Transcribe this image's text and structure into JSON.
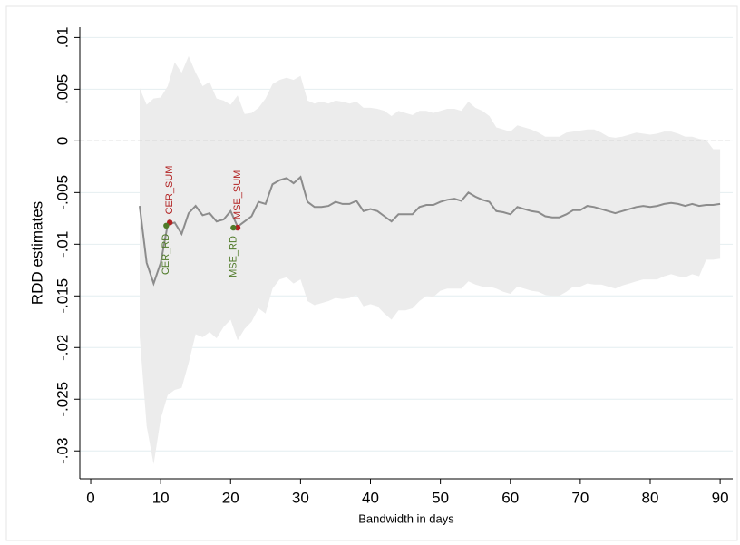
{
  "chart_data": {
    "type": "line",
    "ylabel": "RDD estimates",
    "xlabel": "Bandwidth in days",
    "color": "#8c8c8c",
    "band_color": "#ececec",
    "grid": true,
    "reference_line": 0,
    "xlim": [
      -1.56,
      91.8
    ],
    "ylim": [
      -0.0327,
      0.011
    ],
    "xticks": [
      0,
      10,
      20,
      30,
      40,
      50,
      60,
      70,
      80,
      90
    ],
    "yticks": [
      {
        "value": 0.01,
        "label": ".01"
      },
      {
        "value": 0.005,
        "label": ".005"
      },
      0,
      {
        "value": -0.005,
        "label": "-.005"
      },
      {
        "value": -0.01,
        "label": "-.01"
      },
      {
        "value": -0.015,
        "label": "-.015"
      },
      {
        "value": -0.02,
        "label": "-.02"
      },
      {
        "value": -0.025,
        "label": "-.025"
      },
      {
        "value": -0.03,
        "label": "-.03"
      }
    ],
    "x": [
      7,
      8,
      9,
      10,
      11,
      12,
      13,
      14,
      15,
      16,
      17,
      18,
      19,
      20,
      21,
      22,
      23,
      24,
      25,
      26,
      27,
      28,
      29,
      30,
      31,
      32,
      33,
      34,
      35,
      36,
      37,
      38,
      39,
      40,
      41,
      42,
      43,
      44,
      45,
      46,
      47,
      48,
      49,
      50,
      51,
      52,
      53,
      54,
      55,
      56,
      57,
      58,
      59,
      60,
      61,
      62,
      63,
      64,
      65,
      66,
      67,
      68,
      69,
      70,
      71,
      72,
      73,
      74,
      75,
      76,
      77,
      78,
      79,
      80,
      81,
      82,
      83,
      84,
      85,
      86,
      87,
      88,
      89,
      90
    ],
    "values": [
      -0.0063,
      -0.0118,
      -0.0138,
      -0.0118,
      -0.0081,
      -0.0079,
      -0.009,
      -0.007,
      -0.0063,
      -0.0072,
      -0.007,
      -0.0078,
      -0.0076,
      -0.0068,
      -0.0083,
      -0.0078,
      -0.0073,
      -0.0059,
      -0.0061,
      -0.0042,
      -0.0038,
      -0.0036,
      -0.0041,
      -0.0035,
      -0.0059,
      -0.0064,
      -0.0064,
      -0.0063,
      -0.0059,
      -0.0061,
      -0.0061,
      -0.0058,
      -0.0068,
      -0.0066,
      -0.0068,
      -0.0073,
      -0.0078,
      -0.0071,
      -0.0071,
      -0.0071,
      -0.0064,
      -0.0062,
      -0.0062,
      -0.0059,
      -0.0057,
      -0.0056,
      -0.0058,
      -0.005,
      -0.0054,
      -0.0057,
      -0.0059,
      -0.0068,
      -0.0069,
      -0.0071,
      -0.0064,
      -0.0066,
      -0.0068,
      -0.0069,
      -0.0073,
      -0.0074,
      -0.0074,
      -0.0071,
      -0.0067,
      -0.0067,
      -0.0063,
      -0.0064,
      -0.0066,
      -0.0068,
      -0.007,
      -0.0068,
      -0.0066,
      -0.0064,
      -0.0063,
      -0.0064,
      -0.0063,
      -0.0061,
      -0.006,
      -0.0061,
      -0.0063,
      -0.0061,
      -0.0063,
      -0.0062,
      -0.0062,
      -0.0061
    ],
    "ci_upper": [
      0.0051,
      0.0035,
      0.0041,
      0.0042,
      0.0053,
      0.0076,
      0.0066,
      0.0082,
      0.0066,
      0.0053,
      0.0057,
      0.0041,
      0.0039,
      0.0035,
      0.0044,
      0.0026,
      0.0027,
      0.0032,
      0.0041,
      0.0055,
      0.0059,
      0.0061,
      0.0059,
      0.0063,
      0.0039,
      0.0036,
      0.0038,
      0.0036,
      0.0039,
      0.0038,
      0.0036,
      0.0038,
      0.0032,
      0.0032,
      0.0031,
      0.0029,
      0.0024,
      0.0029,
      0.0027,
      0.0025,
      0.0029,
      0.0029,
      0.0027,
      0.0029,
      0.0031,
      0.0031,
      0.0029,
      0.0038,
      0.0032,
      0.0029,
      0.0024,
      0.0013,
      0.0011,
      0.0009,
      0.0015,
      0.0013,
      0.0011,
      0.0008,
      0.0004,
      0.0004,
      0.0004,
      0.0008,
      0.0009,
      0.001,
      0.0011,
      0.0011,
      0.0008,
      0.0004,
      0.0003,
      0.0004,
      0.0006,
      0.0008,
      0.0007,
      0.0006,
      0.0007,
      0.0009,
      0.0009,
      0.0007,
      0.0004,
      0.0004,
      0.0002,
      0.0001,
      -0.0008,
      -0.0008
    ],
    "ci_lower": [
      -0.0189,
      -0.0276,
      -0.0313,
      -0.0269,
      -0.0246,
      -0.0241,
      -0.0239,
      -0.0215,
      -0.0187,
      -0.019,
      -0.0185,
      -0.0191,
      -0.018,
      -0.0173,
      -0.0193,
      -0.0182,
      -0.0175,
      -0.0162,
      -0.0167,
      -0.0143,
      -0.0134,
      -0.0132,
      -0.0138,
      -0.0134,
      -0.0155,
      -0.0159,
      -0.0157,
      -0.0155,
      -0.0152,
      -0.0153,
      -0.0152,
      -0.0149,
      -0.016,
      -0.0158,
      -0.016,
      -0.0167,
      -0.0173,
      -0.0164,
      -0.0164,
      -0.0162,
      -0.0155,
      -0.015,
      -0.0151,
      -0.0145,
      -0.0143,
      -0.0143,
      -0.0143,
      -0.0136,
      -0.0139,
      -0.0141,
      -0.0141,
      -0.0143,
      -0.0146,
      -0.0148,
      -0.0141,
      -0.0143,
      -0.0145,
      -0.0146,
      -0.0149,
      -0.015,
      -0.015,
      -0.0146,
      -0.0141,
      -0.0141,
      -0.0138,
      -0.0139,
      -0.0139,
      -0.0141,
      -0.0143,
      -0.014,
      -0.0138,
      -0.0136,
      -0.0134,
      -0.0134,
      -0.0134,
      -0.0131,
      -0.0129,
      -0.0131,
      -0.0132,
      -0.0129,
      -0.0131,
      -0.0115,
      -0.0115,
      -0.0114
    ],
    "points": [
      {
        "label": "CER_SUM",
        "x": 11.3,
        "y": -0.0079,
        "color": "#b22222",
        "label_side": "above"
      },
      {
        "label": "CER_RD",
        "x": 10.8,
        "y": -0.0082,
        "color": "#4f7a28",
        "label_side": "below"
      },
      {
        "label": "MSE_SUM",
        "x": 21,
        "y": -0.0084,
        "color": "#b22222",
        "label_side": "above"
      },
      {
        "label": "MSE_RD",
        "x": 20.4,
        "y": -0.0084,
        "color": "#4f7a28",
        "label_side": "below"
      }
    ]
  }
}
